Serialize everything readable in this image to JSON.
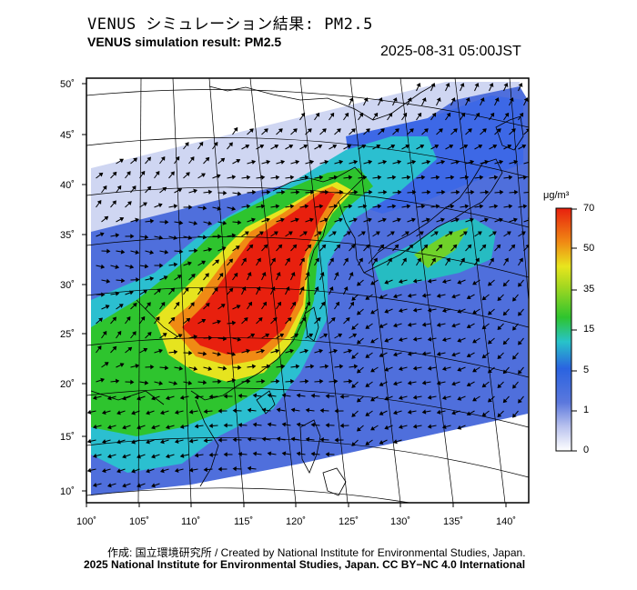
{
  "header": {
    "title_jp": "VENUS シミュレーション結果: PM2.5",
    "title_en": "VENUS simulation result: PM2.5",
    "datetime": "2025-08-31 05:00JST"
  },
  "map": {
    "lon_labels": [
      "100˚",
      "105˚",
      "110˚",
      "115˚",
      "120˚",
      "125˚",
      "130˚",
      "135˚",
      "140˚"
    ],
    "lat_labels": [
      "50˚",
      "45˚",
      "40˚",
      "35˚",
      "30˚",
      "25˚",
      "20˚",
      "15˚",
      "10˚"
    ],
    "colors": {
      "very_low": "#dfe3f5",
      "low": "#5b78dd",
      "blue": "#2a63e0",
      "cyan": "#28c3c9",
      "green": "#2ec42e",
      "yellow": "#e8e51e",
      "orange": "#f08a14",
      "red": "#e8200e"
    }
  },
  "colorbar": {
    "unit": "μg/m³",
    "labels": [
      "70",
      "50",
      "35",
      "15",
      "5",
      "1",
      "0"
    ]
  },
  "footer": {
    "credit_jp_en": "作成: 国立環境研究所 / Created by National Institute for Environmental Studies, Japan.",
    "copyright": "2025 National Institute for Environmental Studies, Japan. CC BY−NC 4.0 International"
  }
}
